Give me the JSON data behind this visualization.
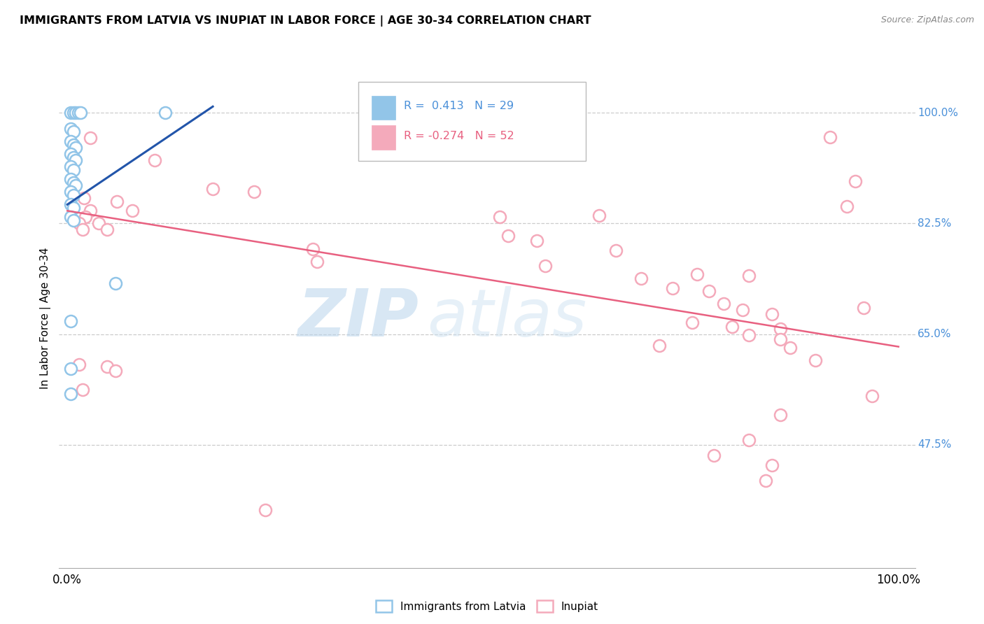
{
  "title": "IMMIGRANTS FROM LATVIA VS INUPIAT IN LABOR FORCE | AGE 30-34 CORRELATION CHART",
  "source": "Source: ZipAtlas.com",
  "ylabel": "In Labor Force | Age 30-34",
  "ytick_labels": [
    "100.0%",
    "82.5%",
    "65.0%",
    "47.5%"
  ],
  "ytick_values": [
    1.0,
    0.825,
    0.65,
    0.475
  ],
  "xlim": [
    -0.01,
    1.02
  ],
  "ylim": [
    0.28,
    1.07
  ],
  "legend_r_latvia": "R =  0.413",
  "legend_n_latvia": "N = 29",
  "legend_r_inupiat": "R = -0.274",
  "legend_n_inupiat": "N = 52",
  "watermark_zip": "ZIP",
  "watermark_atlas": "atlas",
  "latvia_color": "#92C5E8",
  "inupiat_color": "#F4AABB",
  "latvia_line_color": "#2255AA",
  "inupiat_line_color": "#E86080",
  "latvia_line": [
    [
      0.0,
      0.855
    ],
    [
      0.175,
      1.01
    ]
  ],
  "inupiat_line": [
    [
      0.0,
      0.845
    ],
    [
      1.0,
      0.63
    ]
  ],
  "latvia_points": [
    [
      0.004,
      1.0
    ],
    [
      0.007,
      1.0
    ],
    [
      0.01,
      1.0
    ],
    [
      0.013,
      1.0
    ],
    [
      0.016,
      1.0
    ],
    [
      0.004,
      0.975
    ],
    [
      0.007,
      0.97
    ],
    [
      0.004,
      0.955
    ],
    [
      0.007,
      0.95
    ],
    [
      0.01,
      0.945
    ],
    [
      0.004,
      0.935
    ],
    [
      0.007,
      0.93
    ],
    [
      0.01,
      0.925
    ],
    [
      0.004,
      0.915
    ],
    [
      0.007,
      0.91
    ],
    [
      0.004,
      0.895
    ],
    [
      0.007,
      0.89
    ],
    [
      0.01,
      0.885
    ],
    [
      0.004,
      0.875
    ],
    [
      0.007,
      0.87
    ],
    [
      0.004,
      0.855
    ],
    [
      0.007,
      0.85
    ],
    [
      0.004,
      0.835
    ],
    [
      0.007,
      0.83
    ],
    [
      0.118,
      1.0
    ],
    [
      0.058,
      0.73
    ],
    [
      0.004,
      0.67
    ],
    [
      0.004,
      0.595
    ],
    [
      0.004,
      0.555
    ]
  ],
  "inupiat_points": [
    [
      0.028,
      0.96
    ],
    [
      0.105,
      0.925
    ],
    [
      0.175,
      0.88
    ],
    [
      0.225,
      0.875
    ],
    [
      0.02,
      0.865
    ],
    [
      0.06,
      0.86
    ],
    [
      0.028,
      0.845
    ],
    [
      0.078,
      0.845
    ],
    [
      0.022,
      0.835
    ],
    [
      0.014,
      0.825
    ],
    [
      0.038,
      0.825
    ],
    [
      0.018,
      0.815
    ],
    [
      0.048,
      0.815
    ],
    [
      0.52,
      0.835
    ],
    [
      0.64,
      0.838
    ],
    [
      0.53,
      0.805
    ],
    [
      0.565,
      0.798
    ],
    [
      0.295,
      0.785
    ],
    [
      0.66,
      0.782
    ],
    [
      0.3,
      0.765
    ],
    [
      0.575,
      0.758
    ],
    [
      0.758,
      0.745
    ],
    [
      0.82,
      0.742
    ],
    [
      0.69,
      0.738
    ],
    [
      0.728,
      0.722
    ],
    [
      0.772,
      0.718
    ],
    [
      0.79,
      0.698
    ],
    [
      0.812,
      0.688
    ],
    [
      0.848,
      0.682
    ],
    [
      0.752,
      0.668
    ],
    [
      0.8,
      0.662
    ],
    [
      0.858,
      0.658
    ],
    [
      0.82,
      0.648
    ],
    [
      0.858,
      0.642
    ],
    [
      0.87,
      0.628
    ],
    [
      0.712,
      0.632
    ],
    [
      0.9,
      0.608
    ],
    [
      0.014,
      0.602
    ],
    [
      0.048,
      0.598
    ],
    [
      0.058,
      0.592
    ],
    [
      0.018,
      0.562
    ],
    [
      0.858,
      0.522
    ],
    [
      0.82,
      0.482
    ],
    [
      0.778,
      0.458
    ],
    [
      0.848,
      0.442
    ],
    [
      0.84,
      0.418
    ],
    [
      0.238,
      0.372
    ],
    [
      0.918,
      0.962
    ],
    [
      0.948,
      0.892
    ],
    [
      0.938,
      0.852
    ],
    [
      0.958,
      0.692
    ],
    [
      0.968,
      0.552
    ]
  ]
}
